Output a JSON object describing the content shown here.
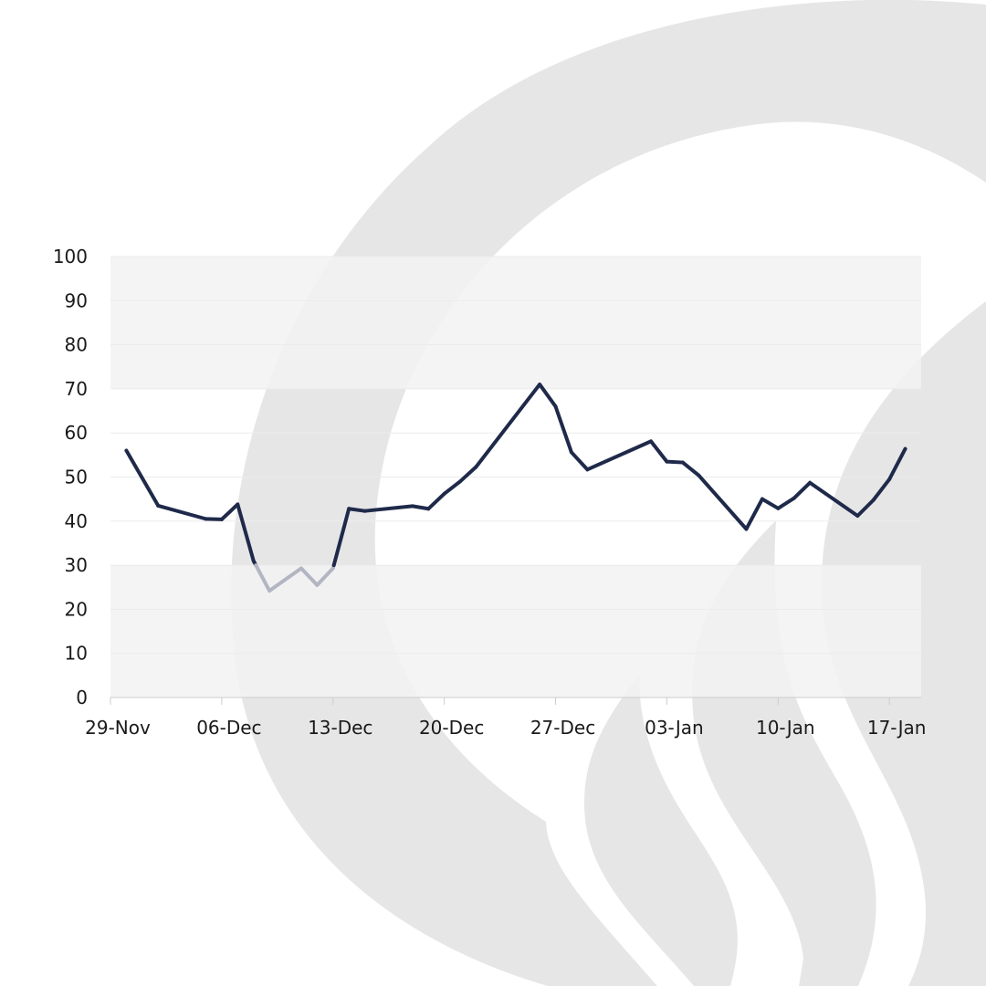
{
  "colors": {
    "background": "#ffffff",
    "watermark": "#e6e6e6",
    "band": "#f2f2f2",
    "gridline": "#ebebeb",
    "line_normal": "#1f2a4a",
    "line_low": "#b3b6c2"
  },
  "chart_data": {
    "type": "line",
    "title": "",
    "xlabel": "",
    "ylabel": "",
    "ylim": [
      0,
      100
    ],
    "yticks": [
      "0",
      "10",
      "20",
      "30",
      "40",
      "50",
      "60",
      "70",
      "80",
      "90",
      "100"
    ],
    "xticks": [
      "29-Nov",
      "06-Dec",
      "13-Dec",
      "20-Dec",
      "27-Dec",
      "03-Jan",
      "10-Jan",
      "17-Jan"
    ],
    "xlim": [
      "2020-11-29",
      "2021-01-19"
    ],
    "grid": true,
    "shaded_bands": [
      {
        "from": 70,
        "to": 100
      },
      {
        "from": 0,
        "to": 30
      }
    ],
    "threshold_low": 30,
    "series": [
      {
        "points": [
          {
            "x": "2020-11-30",
            "y": 56
          },
          {
            "x": "2020-12-02",
            "y": 43.5
          },
          {
            "x": "2020-12-05",
            "y": 40.5
          },
          {
            "x": "2020-12-06",
            "y": 40.4
          },
          {
            "x": "2020-12-07",
            "y": 43.8
          },
          {
            "x": "2020-12-08",
            "y": 31
          },
          {
            "x": "2020-12-09",
            "y": 24.2
          },
          {
            "x": "2020-12-11",
            "y": 29.3
          },
          {
            "x": "2020-12-12",
            "y": 25.5
          },
          {
            "x": "2020-12-13",
            "y": 29.3
          },
          {
            "x": "2020-12-14",
            "y": 42.8
          },
          {
            "x": "2020-12-15",
            "y": 42.3
          },
          {
            "x": "2020-12-18",
            "y": 43.4
          },
          {
            "x": "2020-12-19",
            "y": 42.8
          },
          {
            "x": "2020-12-20",
            "y": 46.2
          },
          {
            "x": "2020-12-21",
            "y": 49
          },
          {
            "x": "2020-12-22",
            "y": 52.3
          },
          {
            "x": "2020-12-26",
            "y": 71
          },
          {
            "x": "2020-12-27",
            "y": 66
          },
          {
            "x": "2020-12-28",
            "y": 55.6
          },
          {
            "x": "2020-12-29",
            "y": 51.7
          },
          {
            "x": "2021-01-02",
            "y": 58.1
          },
          {
            "x": "2021-01-03",
            "y": 53.5
          },
          {
            "x": "2021-01-04",
            "y": 53.3
          },
          {
            "x": "2021-01-05",
            "y": 50.4
          },
          {
            "x": "2021-01-08",
            "y": 38.2
          },
          {
            "x": "2021-01-09",
            "y": 45
          },
          {
            "x": "2021-01-10",
            "y": 42.9
          },
          {
            "x": "2021-01-11",
            "y": 45.2
          },
          {
            "x": "2021-01-12",
            "y": 48.7
          },
          {
            "x": "2021-01-15",
            "y": 41.2
          },
          {
            "x": "2021-01-16",
            "y": 44.8
          },
          {
            "x": "2021-01-17",
            "y": 49.5
          },
          {
            "x": "2021-01-18",
            "y": 56.4
          }
        ]
      }
    ]
  }
}
